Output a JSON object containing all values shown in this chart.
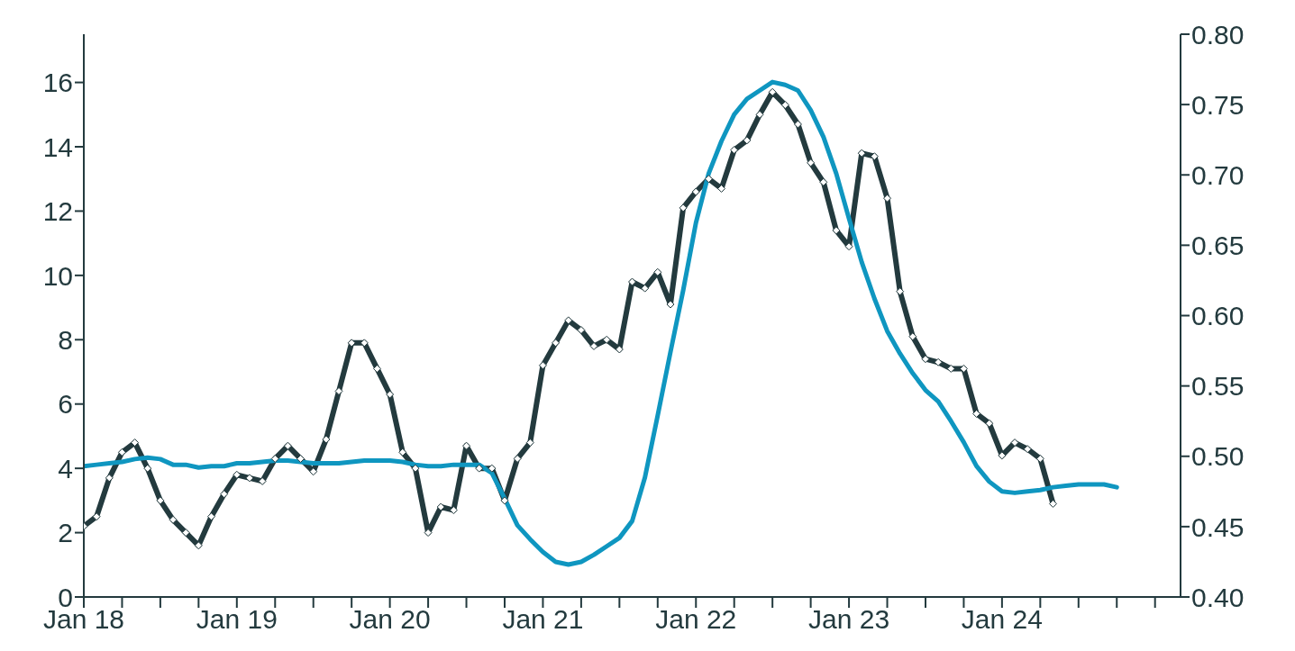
{
  "chart_data": {
    "type": "line",
    "x": [
      "2018-01",
      "2018-02",
      "2018-03",
      "2018-04",
      "2018-05",
      "2018-06",
      "2018-07",
      "2018-08",
      "2018-09",
      "2018-10",
      "2018-11",
      "2018-12",
      "2019-01",
      "2019-02",
      "2019-03",
      "2019-04",
      "2019-05",
      "2019-06",
      "2019-07",
      "2019-08",
      "2019-09",
      "2019-10",
      "2019-11",
      "2019-12",
      "2020-01",
      "2020-02",
      "2020-03",
      "2020-04",
      "2020-05",
      "2020-06",
      "2020-07",
      "2020-08",
      "2020-09",
      "2020-10",
      "2020-11",
      "2020-12",
      "2021-01",
      "2021-02",
      "2021-03",
      "2021-04",
      "2021-05",
      "2021-06",
      "2021-07",
      "2021-08",
      "2021-09",
      "2021-10",
      "2021-11",
      "2021-12",
      "2022-01",
      "2022-02",
      "2022-03",
      "2022-04",
      "2022-05",
      "2022-06",
      "2022-07",
      "2022-08",
      "2022-09",
      "2022-10",
      "2022-11",
      "2022-12",
      "2023-01",
      "2023-02",
      "2023-03",
      "2023-04",
      "2023-05",
      "2023-06",
      "2023-07",
      "2023-08",
      "2023-09",
      "2023-10",
      "2023-11",
      "2023-12",
      "2024-01",
      "2024-02",
      "2024-03",
      "2024-04",
      "2024-05",
      "2024-06",
      "2024-07",
      "2024-08",
      "2024-09",
      "2024-10"
    ],
    "series": [
      {
        "color": "#233a3e",
        "marker": "diamond",
        "values": [
          2.2,
          2.5,
          3.7,
          4.5,
          4.8,
          4.0,
          3.0,
          2.4,
          2.0,
          1.6,
          2.5,
          3.2,
          3.8,
          3.7,
          3.6,
          4.3,
          4.7,
          4.3,
          3.9,
          4.9,
          6.4,
          7.9,
          7.9,
          7.1,
          6.3,
          4.5,
          4.0,
          2.0,
          2.8,
          2.7,
          4.7,
          4.0,
          4.0,
          3.0,
          4.3,
          4.8,
          7.2,
          7.9,
          8.6,
          8.3,
          7.8,
          8.0,
          7.7,
          9.8,
          9.6,
          10.1,
          9.1,
          12.1,
          12.6,
          13.0,
          12.7,
          13.9,
          14.2,
          15.0,
          15.7,
          15.3,
          14.7,
          13.5,
          12.9,
          11.4,
          10.9,
          13.8,
          13.7,
          12.4,
          9.5,
          8.1,
          7.4,
          7.3,
          7.1,
          7.1,
          5.7,
          5.4,
          4.4,
          4.8,
          4.6,
          4.3,
          2.9,
          null,
          null,
          null,
          null,
          null
        ]
      },
      {
        "color": "#0f96c0",
        "axis": "y2",
        "marker": "none",
        "values": [
          0.493,
          0.494,
          0.495,
          0.496,
          0.498,
          0.499,
          0.498,
          0.494,
          0.494,
          0.492,
          0.493,
          0.493,
          0.495,
          0.495,
          0.496,
          0.497,
          0.497,
          0.496,
          0.495,
          0.495,
          0.495,
          0.496,
          0.497,
          0.497,
          0.497,
          0.496,
          0.494,
          0.493,
          0.493,
          0.494,
          0.494,
          0.494,
          0.488,
          0.47,
          0.451,
          0.441,
          0.432,
          0.425,
          0.423,
          0.425,
          0.43,
          0.436,
          0.442,
          0.454,
          0.485,
          0.529,
          0.574,
          0.618,
          0.666,
          0.701,
          0.724,
          0.743,
          0.754,
          0.76,
          0.766,
          0.764,
          0.76,
          0.746,
          0.727,
          0.701,
          0.669,
          0.638,
          0.612,
          0.589,
          0.573,
          0.559,
          0.547,
          0.539,
          0.525,
          0.51,
          0.493,
          0.482,
          0.475,
          0.474,
          0.475,
          0.476,
          0.478,
          0.479,
          0.48,
          0.48,
          0.48,
          0.478
        ]
      }
    ],
    "xlim": [
      "2018-01",
      "2025-03"
    ],
    "xticks": [
      {
        "value": "2018-01",
        "label": "Jan 18"
      },
      {
        "value": "2018-04",
        "label": null
      },
      {
        "value": "2018-07",
        "label": null
      },
      {
        "value": "2018-10",
        "label": null
      },
      {
        "value": "2019-01",
        "label": "Jan 19"
      },
      {
        "value": "2019-04",
        "label": null
      },
      {
        "value": "2019-07",
        "label": null
      },
      {
        "value": "2019-10",
        "label": null
      },
      {
        "value": "2020-01",
        "label": "Jan 20"
      },
      {
        "value": "2020-04",
        "label": null
      },
      {
        "value": "2020-07",
        "label": null
      },
      {
        "value": "2020-10",
        "label": null
      },
      {
        "value": "2021-01",
        "label": "Jan 21"
      },
      {
        "value": "2021-04",
        "label": null
      },
      {
        "value": "2021-07",
        "label": null
      },
      {
        "value": "2021-10",
        "label": null
      },
      {
        "value": "2022-01",
        "label": "Jan 22"
      },
      {
        "value": "2022-04",
        "label": null
      },
      {
        "value": "2022-07",
        "label": null
      },
      {
        "value": "2022-10",
        "label": null
      },
      {
        "value": "2023-01",
        "label": "Jan 23"
      },
      {
        "value": "2023-04",
        "label": null
      },
      {
        "value": "2023-07",
        "label": null
      },
      {
        "value": "2023-10",
        "label": null
      },
      {
        "value": "2024-01",
        "label": "Jan 24"
      },
      {
        "value": "2024-04",
        "label": null
      },
      {
        "value": "2024-07",
        "label": null
      },
      {
        "value": "2024-10",
        "label": null
      },
      {
        "value": "2025-01",
        "label": null
      }
    ],
    "ylim": [
      0,
      17.5
    ],
    "yticks": [
      0,
      2,
      4,
      6,
      8,
      10,
      12,
      14,
      16
    ],
    "y2lim": [
      0.4,
      0.8
    ],
    "y2ticks": [
      {
        "value": 0.4,
        "label": "0.40"
      },
      {
        "value": 0.45,
        "label": "0.45"
      },
      {
        "value": 0.5,
        "label": "0.50"
      },
      {
        "value": 0.55,
        "label": "0.55"
      },
      {
        "value": 0.6,
        "label": "0.60"
      },
      {
        "value": 0.65,
        "label": "0.65"
      },
      {
        "value": 0.7,
        "label": "0.70"
      },
      {
        "value": 0.75,
        "label": "0.75"
      },
      {
        "value": 0.8,
        "label": "0.80"
      }
    ],
    "grid": false,
    "legend": false
  }
}
